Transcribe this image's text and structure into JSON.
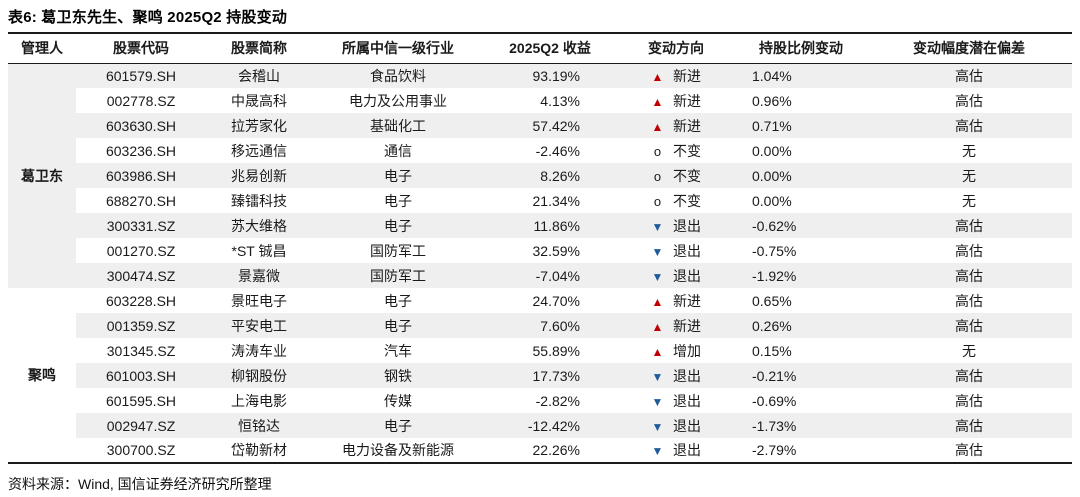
{
  "title": "表6: 葛卫东先生、聚鸣 2025Q2 持股变动",
  "source": "资料来源：Wind, 国信证券经济研究所整理",
  "colors": {
    "up_marker": "#c00000",
    "down_marker": "#1f5c99",
    "flat_marker": "#1a1a1a",
    "row_stripe": "#efefef"
  },
  "table": {
    "columns": [
      "管理人",
      "股票代码",
      "股票简称",
      "所属中信一级行业",
      "2025Q2 收益",
      "变动方向",
      "持股比例变动",
      "变动幅度潜在偏差"
    ],
    "direction_markers": {
      "up": "▲",
      "down": "▼",
      "flat": "o"
    },
    "groups": [
      {
        "manager": "葛卫东",
        "rows": [
          {
            "code": "601579.SH",
            "name": "会稽山",
            "industry": "食品饮料",
            "return": "93.19%",
            "direction": "up",
            "direction_label": "新进",
            "change": "1.04%",
            "bias": "高估"
          },
          {
            "code": "002778.SZ",
            "name": "中晟高科",
            "industry": "电力及公用事业",
            "return": "4.13%",
            "direction": "up",
            "direction_label": "新进",
            "change": "0.96%",
            "bias": "高估"
          },
          {
            "code": "603630.SH",
            "name": "拉芳家化",
            "industry": "基础化工",
            "return": "57.42%",
            "direction": "up",
            "direction_label": "新进",
            "change": "0.71%",
            "bias": "高估"
          },
          {
            "code": "603236.SH",
            "name": "移远通信",
            "industry": "通信",
            "return": "-2.46%",
            "direction": "flat",
            "direction_label": "不变",
            "change": "0.00%",
            "bias": "无"
          },
          {
            "code": "603986.SH",
            "name": "兆易创新",
            "industry": "电子",
            "return": "8.26%",
            "direction": "flat",
            "direction_label": "不变",
            "change": "0.00%",
            "bias": "无"
          },
          {
            "code": "688270.SH",
            "name": "臻镭科技",
            "industry": "电子",
            "return": "21.34%",
            "direction": "flat",
            "direction_label": "不变",
            "change": "0.00%",
            "bias": "无"
          },
          {
            "code": "300331.SZ",
            "name": "苏大维格",
            "industry": "电子",
            "return": "11.86%",
            "direction": "down",
            "direction_label": "退出",
            "change": "-0.62%",
            "bias": "高估"
          },
          {
            "code": "001270.SZ",
            "name": "*ST 铖昌",
            "industry": "国防军工",
            "return": "32.59%",
            "direction": "down",
            "direction_label": "退出",
            "change": "-0.75%",
            "bias": "高估"
          },
          {
            "code": "300474.SZ",
            "name": "景嘉微",
            "industry": "国防军工",
            "return": "-7.04%",
            "direction": "down",
            "direction_label": "退出",
            "change": "-1.92%",
            "bias": "高估"
          }
        ]
      },
      {
        "manager": "聚鸣",
        "rows": [
          {
            "code": "603228.SH",
            "name": "景旺电子",
            "industry": "电子",
            "return": "24.70%",
            "direction": "up",
            "direction_label": "新进",
            "change": "0.65%",
            "bias": "高估"
          },
          {
            "code": "001359.SZ",
            "name": "平安电工",
            "industry": "电子",
            "return": "7.60%",
            "direction": "up",
            "direction_label": "新进",
            "change": "0.26%",
            "bias": "高估"
          },
          {
            "code": "301345.SZ",
            "name": "涛涛车业",
            "industry": "汽车",
            "return": "55.89%",
            "direction": "up",
            "direction_label": "增加",
            "change": "0.15%",
            "bias": "无"
          },
          {
            "code": "601003.SH",
            "name": "柳钢股份",
            "industry": "钢铁",
            "return": "17.73%",
            "direction": "down",
            "direction_label": "退出",
            "change": "-0.21%",
            "bias": "高估"
          },
          {
            "code": "601595.SH",
            "name": "上海电影",
            "industry": "传媒",
            "return": "-2.82%",
            "direction": "down",
            "direction_label": "退出",
            "change": "-0.69%",
            "bias": "高估"
          },
          {
            "code": "002947.SZ",
            "name": "恒铭达",
            "industry": "电子",
            "return": "-12.42%",
            "direction": "down",
            "direction_label": "退出",
            "change": "-1.73%",
            "bias": "高估"
          },
          {
            "code": "300700.SZ",
            "name": "岱勒新材",
            "industry": "电力设备及新能源",
            "return": "22.26%",
            "direction": "down",
            "direction_label": "退出",
            "change": "-2.79%",
            "bias": "高估"
          }
        ]
      }
    ]
  }
}
